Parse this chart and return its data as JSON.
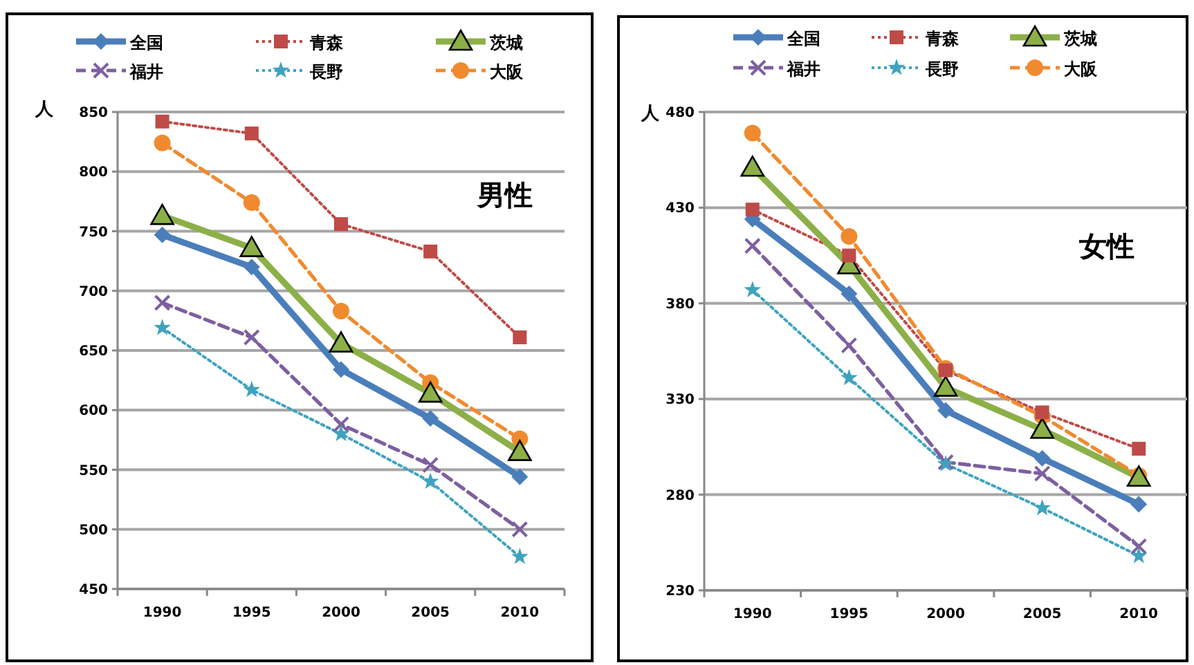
{
  "chart_data": [
    {
      "type": "line",
      "ylabel": "人",
      "annotations": [
        "男性"
      ],
      "categories": [
        "1990",
        "1995",
        "2000",
        "2005",
        "2010"
      ],
      "ylim": [
        450,
        850
      ],
      "yticks": [
        450,
        500,
        550,
        600,
        650,
        700,
        750,
        800,
        850
      ],
      "grid": "y",
      "legend": "top",
      "series": [
        {
          "name": "全国",
          "color": "#4a7ebb",
          "line_style": "solid",
          "marker": "diamond",
          "values": [
            747,
            720,
            634,
            593,
            544
          ]
        },
        {
          "name": "青森",
          "color": "#be4b48",
          "line_style": "dotted",
          "marker": "square",
          "values": [
            842,
            832,
            756,
            733,
            661
          ]
        },
        {
          "name": "茨城",
          "color": "#8cb047",
          "line_style": "solid",
          "marker": "triangle",
          "values": [
            763,
            736,
            656,
            614,
            565
          ]
        },
        {
          "name": "福井",
          "color": "#7d5fa0",
          "line_style": "dashed",
          "marker": "cross",
          "values": [
            690,
            661,
            588,
            554,
            500
          ]
        },
        {
          "name": "長野",
          "color": "#3fa3bf",
          "line_style": "dotted",
          "marker": "star",
          "values": [
            669,
            617,
            580,
            540,
            477
          ]
        },
        {
          "name": "大阪",
          "color": "#f08a2e",
          "line_style": "dashed",
          "marker": "circle",
          "values": [
            824,
            774,
            683,
            623,
            576
          ]
        }
      ]
    },
    {
      "type": "line",
      "ylabel": "人",
      "annotations": [
        "女性"
      ],
      "categories": [
        "1990",
        "1995",
        "2000",
        "2005",
        "2010"
      ],
      "ylim": [
        230,
        480
      ],
      "yticks": [
        230,
        280,
        330,
        380,
        430,
        480
      ],
      "grid": "y",
      "legend": "top",
      "series": [
        {
          "name": "全国",
          "color": "#4a7ebb",
          "line_style": "solid",
          "marker": "diamond",
          "values": [
            424,
            385,
            324,
            299,
            275
          ]
        },
        {
          "name": "青森",
          "color": "#be4b48",
          "line_style": "dotted",
          "marker": "square",
          "values": [
            429,
            405,
            345,
            323,
            304
          ]
        },
        {
          "name": "茨城",
          "color": "#8cb047",
          "line_style": "solid",
          "marker": "triangle",
          "values": [
            451,
            400,
            336,
            314,
            289
          ]
        },
        {
          "name": "福井",
          "color": "#7d5fa0",
          "line_style": "dashed",
          "marker": "cross",
          "values": [
            410,
            358,
            297,
            291,
            253
          ]
        },
        {
          "name": "長野",
          "color": "#3fa3bf",
          "line_style": "dotted",
          "marker": "star",
          "values": [
            387,
            341,
            296,
            273,
            248
          ]
        },
        {
          "name": "大阪",
          "color": "#f08a2e",
          "line_style": "dashed",
          "marker": "circle",
          "values": [
            469,
            415,
            346,
            321,
            290
          ]
        }
      ]
    }
  ]
}
